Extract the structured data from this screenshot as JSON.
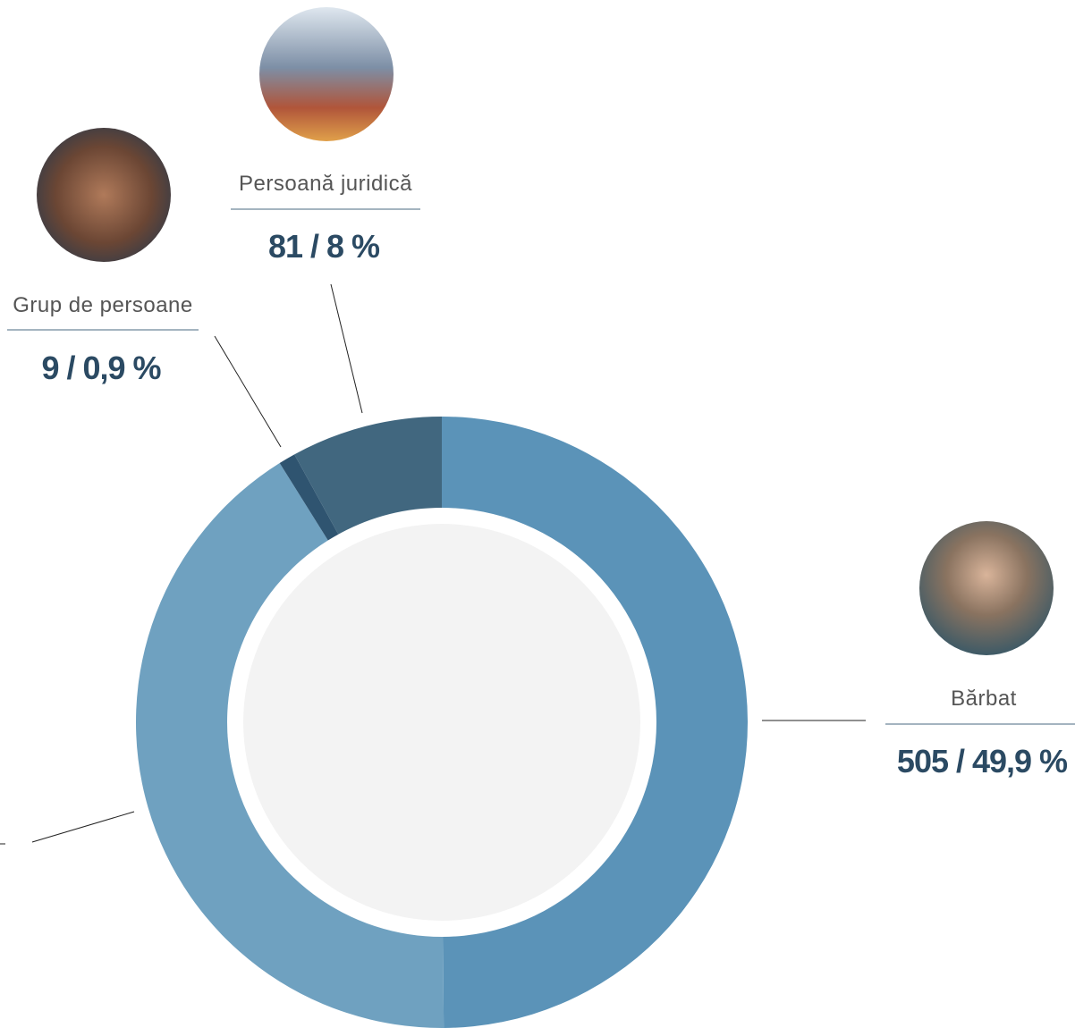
{
  "chart_data": {
    "type": "pie",
    "categories": [
      "Bărbat",
      null,
      "Grup de persoane",
      "Persoană juridică"
    ],
    "values": [
      505,
      417,
      9,
      81
    ],
    "value_labels": [
      "505 / 49,9 %",
      null,
      "9 / 0,9 %",
      "81 / 8 %"
    ],
    "colors": [
      "#5b93b8",
      "#6fa1c0",
      "#2f5470",
      "#41677f"
    ]
  }
}
